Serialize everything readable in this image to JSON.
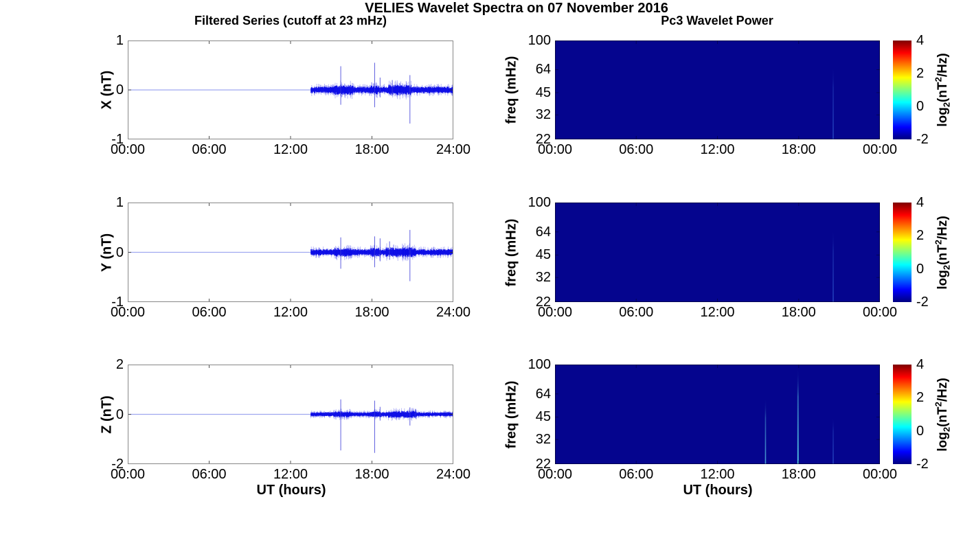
{
  "figure": {
    "suptitle": "VELIES Wavelet Spectra on 07 November 2016",
    "left_column_title": "Filtered Series (cutoff at 23 mHz)",
    "right_column_title": "Pc3 Wavelet Power",
    "xlabel": "UT (hours)",
    "line_color_hex": "#0000e6",
    "heatmap_background_hex": "#05058e",
    "colorbar": {
      "ticks": [
        4,
        2,
        0,
        -2
      ],
      "label_pre": "log",
      "label_sub": "2",
      "label_mid": "(nT",
      "label_sup": "2",
      "label_post": "/Hz)"
    }
  },
  "chart_data": [
    {
      "id": "x-filtered-series",
      "type": "line",
      "ylabel": "X (nT)",
      "ylim": [
        -1,
        1
      ],
      "yticks": [
        1,
        0,
        -1
      ],
      "xlim_hours": [
        0,
        24
      ],
      "xtick_labels": [
        "00:00",
        "06:00",
        "12:00",
        "18:00",
        "24:00"
      ],
      "quiet_until_hour": 13.5,
      "quiet_value": 0,
      "noise_amplitude": 0.07,
      "noise_bursts": [
        {
          "from": 15.2,
          "to": 16.6,
          "factor": 1.5
        },
        {
          "from": 17.9,
          "to": 18.5,
          "factor": 1.3
        },
        {
          "from": 19.2,
          "to": 20.9,
          "factor": 1.55
        }
      ],
      "spikes": [
        {
          "hour": 15.7,
          "max": 0.48,
          "min": -0.3
        },
        {
          "hour": 18.2,
          "max": 0.55,
          "min": -0.35
        },
        {
          "hour": 18.6,
          "max": 0.25,
          "min": -0.15
        },
        {
          "hour": 19.5,
          "max": 0.2,
          "min": -0.12
        },
        {
          "hour": 20.8,
          "max": 0.3,
          "min": -0.68
        }
      ]
    },
    {
      "id": "y-filtered-series",
      "type": "line",
      "ylabel": "Y (nT)",
      "ylim": [
        -1,
        1
      ],
      "yticks": [
        1,
        0,
        -1
      ],
      "xlim_hours": [
        0,
        24
      ],
      "xtick_labels": [
        "00:00",
        "06:00",
        "12:00",
        "18:00",
        "24:00"
      ],
      "quiet_until_hour": 13.5,
      "quiet_value": 0,
      "noise_amplitude": 0.065,
      "noise_bursts": [
        {
          "from": 15.2,
          "to": 16.5,
          "factor": 1.4
        },
        {
          "from": 17.9,
          "to": 18.6,
          "factor": 1.35
        },
        {
          "from": 19.0,
          "to": 21.2,
          "factor": 1.55
        }
      ],
      "spikes": [
        {
          "hour": 15.7,
          "max": 0.3,
          "min": -0.33
        },
        {
          "hour": 18.2,
          "max": 0.32,
          "min": -0.3
        },
        {
          "hour": 18.6,
          "max": 0.28,
          "min": -0.18
        },
        {
          "hour": 19.3,
          "max": 0.22,
          "min": -0.15
        },
        {
          "hour": 20.8,
          "max": 0.45,
          "min": -0.58
        }
      ]
    },
    {
      "id": "z-filtered-series",
      "type": "line",
      "ylabel": "Z (nT)",
      "ylim": [
        -2,
        2
      ],
      "yticks": [
        2,
        0,
        -2
      ],
      "xlim_hours": [
        0,
        24
      ],
      "xtick_labels": [
        "00:00",
        "06:00",
        "12:00",
        "18:00",
        "24:00"
      ],
      "quiet_until_hour": 13.5,
      "quiet_value": 0,
      "noise_amplitude": 0.09,
      "noise_bursts": [
        {
          "from": 15.2,
          "to": 16.4,
          "factor": 1.4
        },
        {
          "from": 17.9,
          "to": 18.7,
          "factor": 1.35
        },
        {
          "from": 19.2,
          "to": 21.3,
          "factor": 1.6
        }
      ],
      "spikes": [
        {
          "hour": 15.7,
          "max": 0.6,
          "min": -1.45
        },
        {
          "hour": 18.2,
          "max": 0.55,
          "min": -1.55
        },
        {
          "hour": 18.6,
          "max": 0.3,
          "min": -0.25
        },
        {
          "hour": 20.8,
          "max": 0.28,
          "min": -0.45
        },
        {
          "hour": 21.2,
          "max": 0.2,
          "min": -0.15
        }
      ]
    },
    {
      "id": "x-wavelet-power",
      "type": "heatmap",
      "ylabel": "freq (mHz)",
      "ylim_mhz": [
        22,
        100
      ],
      "yticks_mhz": [
        100,
        64,
        45,
        32,
        22
      ],
      "yscale": "log",
      "xlim_hours": [
        0,
        24
      ],
      "xtick_labels": [
        "00:00",
        "06:00",
        "12:00",
        "18:00",
        "00:00"
      ],
      "colormap": "jet",
      "clim_log2_power": [
        -2,
        4
      ],
      "background_log2_power": -2,
      "events": [
        {
          "hour": 20.55,
          "top_mhz": 68,
          "intensity": "faint"
        }
      ]
    },
    {
      "id": "y-wavelet-power",
      "type": "heatmap",
      "ylabel": "freq (mHz)",
      "ylim_mhz": [
        22,
        100
      ],
      "yticks_mhz": [
        100,
        64,
        45,
        32,
        22
      ],
      "yscale": "log",
      "xlim_hours": [
        0,
        24
      ],
      "xtick_labels": [
        "00:00",
        "06:00",
        "12:00",
        "18:00",
        "00:00"
      ],
      "colormap": "jet",
      "clim_log2_power": [
        -2,
        4
      ],
      "background_log2_power": -2,
      "events": [
        {
          "hour": 20.55,
          "top_mhz": 67,
          "intensity": "faint"
        }
      ]
    },
    {
      "id": "z-wavelet-power",
      "type": "heatmap",
      "ylabel": "freq (mHz)",
      "ylim_mhz": [
        22,
        100
      ],
      "yticks_mhz": [
        100,
        64,
        45,
        32,
        22
      ],
      "yscale": "log",
      "xlim_hours": [
        0,
        24
      ],
      "xtick_labels": [
        "00:00",
        "06:00",
        "12:00",
        "18:00",
        "00:00"
      ],
      "colormap": "jet",
      "clim_log2_power": [
        -2,
        4
      ],
      "background_log2_power": -2,
      "events": [
        {
          "hour": 15.55,
          "top_mhz": 60,
          "intensity": "moderate"
        },
        {
          "hour": 17.95,
          "top_mhz": 95,
          "intensity": "strong"
        },
        {
          "hour": 20.55,
          "top_mhz": 45,
          "intensity": "faint"
        }
      ]
    }
  ]
}
